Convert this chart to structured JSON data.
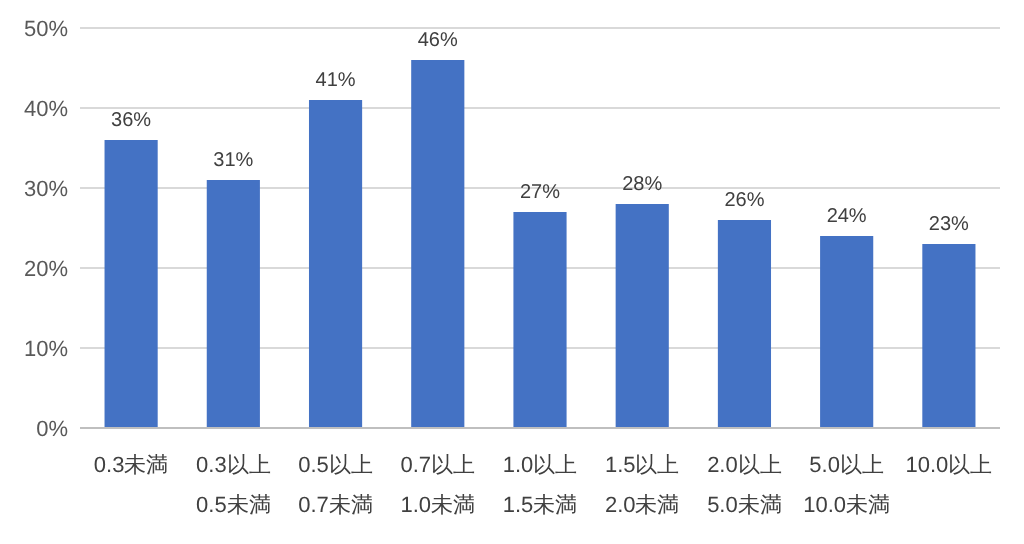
{
  "chart_data": {
    "type": "bar",
    "categories": [
      "0.3未満",
      "0.3以上\n0.5未満",
      "0.5以上\n0.7未満",
      "0.7以上\n1.0未満",
      "1.0以上\n1.5未満",
      "1.5以上\n2.0未満",
      "2.0以上\n5.0未満",
      "5.0以上\n10.0未満",
      "10.0以上"
    ],
    "values": [
      36,
      31,
      41,
      46,
      27,
      28,
      26,
      24,
      23
    ],
    "value_labels": [
      "36%",
      "31%",
      "41%",
      "46%",
      "27%",
      "28%",
      "26%",
      "24%",
      "23%"
    ],
    "color": "#4472c4",
    "ylim": [
      0,
      50
    ],
    "yticks": [
      {
        "value": 0,
        "label": "0%"
      },
      {
        "value": 10,
        "label": "10%"
      },
      {
        "value": 20,
        "label": "20%"
      },
      {
        "value": 30,
        "label": "30%"
      },
      {
        "value": 40,
        "label": "40%"
      },
      {
        "value": 50,
        "label": "50%"
      }
    ],
    "grid": "y"
  }
}
